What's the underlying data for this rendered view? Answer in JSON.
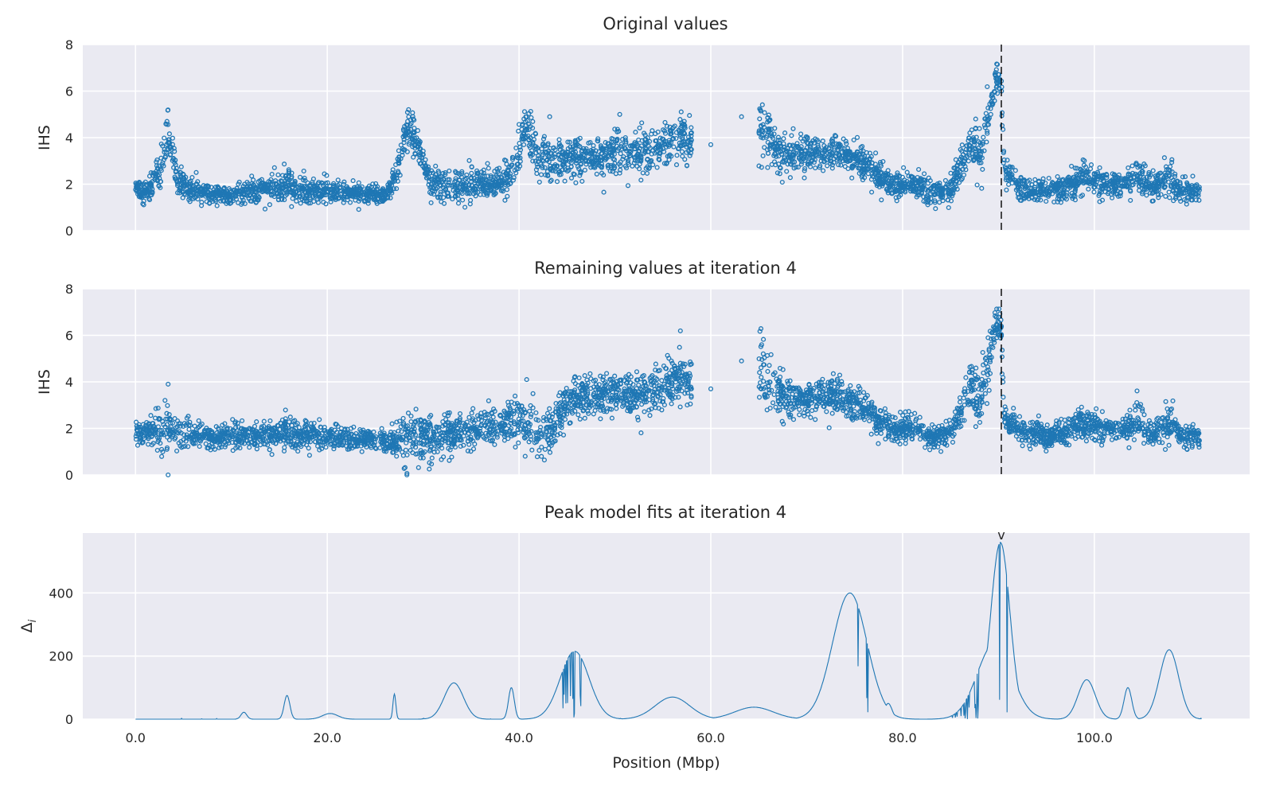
{
  "chart_data": [
    {
      "type": "scatter",
      "title": "Original values",
      "ylabel": "IHS",
      "xlabel": "",
      "xlim": [
        -5.5,
        116.2
      ],
      "ylim": [
        0,
        8
      ],
      "yticks": [
        0,
        2,
        4,
        6,
        8
      ],
      "xticks": [
        0,
        20,
        40,
        60,
        80,
        100
      ],
      "grid": true,
      "marker": "open-circle",
      "color": "#1f77b4",
      "vline_x": 90.3,
      "anchors": [
        [
          0.0,
          1.8,
          0.25
        ],
        [
          0.8,
          1.7,
          0.25
        ],
        [
          1.8,
          2.0,
          0.3
        ],
        [
          2.6,
          2.6,
          0.35
        ],
        [
          3.3,
          4.3,
          0.5
        ],
        [
          3.8,
          3.3,
          0.4
        ],
        [
          4.4,
          2.2,
          0.3
        ],
        [
          5.5,
          1.8,
          0.25
        ],
        [
          8,
          1.6,
          0.2
        ],
        [
          10,
          1.5,
          0.2
        ],
        [
          12,
          1.7,
          0.25
        ],
        [
          15,
          1.8,
          0.3
        ],
        [
          16,
          2.0,
          0.35
        ],
        [
          18,
          1.7,
          0.25
        ],
        [
          20,
          1.7,
          0.25
        ],
        [
          23,
          1.6,
          0.2
        ],
        [
          26,
          1.5,
          0.2
        ],
        [
          27.2,
          2.4,
          0.3
        ],
        [
          28.5,
          4.6,
          0.45
        ],
        [
          29.4,
          3.6,
          0.4
        ],
        [
          30.5,
          2.3,
          0.35
        ],
        [
          32,
          1.9,
          0.35
        ],
        [
          35,
          2.0,
          0.35
        ],
        [
          38,
          2.0,
          0.3
        ],
        [
          39.5,
          2.6,
          0.45
        ],
        [
          40.8,
          4.7,
          0.5
        ],
        [
          42,
          3.0,
          0.45
        ],
        [
          45,
          3.1,
          0.45
        ],
        [
          48,
          3.2,
          0.45
        ],
        [
          51,
          3.3,
          0.45
        ],
        [
          54,
          3.5,
          0.45
        ],
        [
          56.5,
          4.1,
          0.5
        ],
        [
          58,
          4.0,
          0.5
        ]
      ],
      "anchors2": [
        [
          65,
          4.6,
          0.8
        ],
        [
          66,
          4.0,
          0.6
        ],
        [
          67.5,
          3.3,
          0.4
        ],
        [
          70,
          3.3,
          0.35
        ],
        [
          73,
          3.4,
          0.35
        ],
        [
          75.5,
          3.0,
          0.35
        ],
        [
          77,
          2.5,
          0.35
        ],
        [
          79,
          1.9,
          0.3
        ],
        [
          81,
          2.1,
          0.3
        ],
        [
          83,
          1.6,
          0.25
        ],
        [
          85,
          1.8,
          0.25
        ],
        [
          86.3,
          3.0,
          0.4
        ],
        [
          87.2,
          4.0,
          0.5
        ],
        [
          88,
          3.0,
          0.5
        ],
        [
          89,
          5.0,
          0.6
        ],
        [
          89.8,
          6.6,
          0.4
        ],
        [
          90.3,
          6.0,
          0.5
        ],
        [
          90.6,
          2.6,
          0.3
        ],
        [
          92,
          1.9,
          0.25
        ],
        [
          95,
          1.7,
          0.25
        ],
        [
          97,
          1.8,
          0.25
        ],
        [
          99,
          2.3,
          0.35
        ],
        [
          101,
          2.0,
          0.3
        ],
        [
          103,
          1.9,
          0.3
        ],
        [
          104.5,
          2.4,
          0.4
        ],
        [
          106,
          1.8,
          0.3
        ],
        [
          108,
          2.3,
          0.45
        ],
        [
          109,
          1.7,
          0.25
        ],
        [
          111,
          1.7,
          0.25
        ]
      ],
      "singles": [
        [
          43.2,
          4.9
        ],
        [
          50.5,
          5.0
        ],
        [
          60,
          3.7
        ],
        [
          63.2,
          4.9
        ]
      ]
    },
    {
      "type": "scatter",
      "title": "Remaining values at iteration 4",
      "ylabel": "IHS",
      "xlabel": "",
      "xlim": [
        -5.5,
        116.2
      ],
      "ylim": [
        0,
        8
      ],
      "yticks": [
        0,
        2,
        4,
        6,
        8
      ],
      "xticks": [
        0,
        20,
        40,
        60,
        80,
        100
      ],
      "grid": true,
      "marker": "open-circle",
      "color": "#1f77b4",
      "vline_x": 90.3,
      "anchors": [
        [
          0.0,
          1.8,
          0.25
        ],
        [
          1.5,
          1.9,
          0.3
        ],
        [
          3.0,
          1.9,
          0.55
        ],
        [
          4.5,
          1.8,
          0.35
        ],
        [
          8,
          1.6,
          0.25
        ],
        [
          12,
          1.7,
          0.3
        ],
        [
          16,
          1.8,
          0.35
        ],
        [
          20,
          1.6,
          0.25
        ],
        [
          24,
          1.5,
          0.2
        ],
        [
          26.8,
          1.4,
          0.3
        ],
        [
          28.5,
          1.6,
          0.5
        ],
        [
          31,
          1.6,
          0.45
        ],
        [
          34,
          1.8,
          0.4
        ],
        [
          37,
          2.1,
          0.4
        ],
        [
          39.5,
          2.4,
          0.5
        ],
        [
          41,
          2.1,
          0.5
        ],
        [
          43,
          1.9,
          0.5
        ],
        [
          44.5,
          2.8,
          0.45
        ],
        [
          46,
          3.3,
          0.45
        ],
        [
          50,
          3.5,
          0.45
        ],
        [
          54,
          3.5,
          0.45
        ],
        [
          56.5,
          4.1,
          0.5
        ],
        [
          58,
          4.0,
          0.5
        ]
      ],
      "anchors2": [
        [
          65,
          4.6,
          0.8
        ],
        [
          66,
          4.0,
          0.6
        ],
        [
          67.5,
          3.3,
          0.4
        ],
        [
          70,
          3.3,
          0.35
        ],
        [
          73,
          3.4,
          0.35
        ],
        [
          75.5,
          3.0,
          0.35
        ],
        [
          77,
          2.5,
          0.35
        ],
        [
          79,
          1.9,
          0.3
        ],
        [
          81,
          2.1,
          0.3
        ],
        [
          83,
          1.6,
          0.25
        ],
        [
          85,
          1.8,
          0.25
        ],
        [
          86.3,
          3.0,
          0.4
        ],
        [
          87.2,
          4.0,
          0.5
        ],
        [
          88,
          3.0,
          0.5
        ],
        [
          89,
          5.0,
          0.6
        ],
        [
          89.8,
          6.6,
          0.4
        ],
        [
          90.3,
          6.0,
          0.5
        ],
        [
          90.6,
          2.6,
          0.3
        ],
        [
          92,
          1.9,
          0.25
        ],
        [
          95,
          1.7,
          0.25
        ],
        [
          97,
          1.8,
          0.25
        ],
        [
          99,
          2.3,
          0.35
        ],
        [
          101,
          2.0,
          0.3
        ],
        [
          103,
          1.9,
          0.3
        ],
        [
          104.5,
          2.4,
          0.4
        ],
        [
          106,
          1.8,
          0.3
        ],
        [
          108,
          2.3,
          0.45
        ],
        [
          109,
          1.7,
          0.25
        ],
        [
          111,
          1.7,
          0.25
        ]
      ],
      "singles": [
        [
          3.4,
          3.9
        ],
        [
          3.4,
          0.0
        ],
        [
          28.3,
          0.0
        ],
        [
          40.8,
          4.1
        ],
        [
          60,
          3.7
        ],
        [
          63.2,
          4.9
        ]
      ]
    },
    {
      "type": "line",
      "title": "Peak model fits at iteration 4",
      "ylabel": "Δi",
      "xlabel": "Position (Mbp)",
      "xlim": [
        -5.5,
        116.2
      ],
      "ylim": [
        0,
        590
      ],
      "yticks": [
        0,
        200,
        400
      ],
      "xticks": [
        0,
        20,
        40,
        60,
        80,
        100
      ],
      "xticklabels": [
        "0.0",
        "20.0",
        "40.0",
        "60.0",
        "80.0",
        "100.0"
      ],
      "grid": true,
      "color": "#1f77b4",
      "marker_label": "v",
      "marker_x": 90.3,
      "peaks": [
        [
          11.3,
          22,
          0.3
        ],
        [
          15.8,
          75,
          0.3
        ],
        [
          20.3,
          18,
          0.8
        ],
        [
          27.0,
          80,
          0.15
        ],
        [
          33.2,
          115,
          1.0
        ],
        [
          39.2,
          100,
          0.3
        ],
        [
          45.8,
          215,
          1.5
        ],
        [
          56.0,
          70,
          1.8
        ],
        [
          64.5,
          38,
          2.0
        ],
        [
          74.5,
          400,
          1.8
        ],
        [
          78.5,
          50,
          0.4
        ],
        [
          90.2,
          560,
          1.0
        ],
        [
          89.6,
          240,
          1.8
        ],
        [
          99.2,
          125,
          0.9
        ],
        [
          103.5,
          100,
          0.4
        ],
        [
          107.8,
          220,
          1.0
        ]
      ]
    }
  ]
}
